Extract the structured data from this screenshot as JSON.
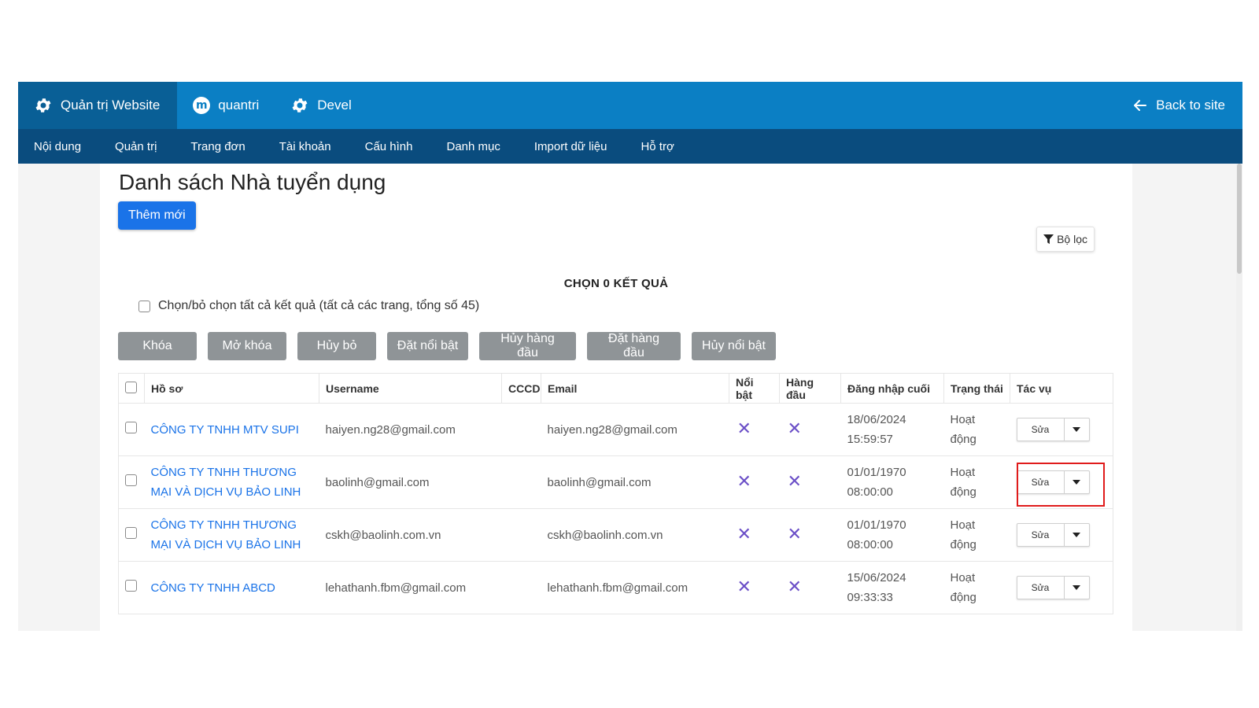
{
  "topbar": {
    "site_admin": "Quản trị Website",
    "user": "quantri",
    "devel": "Devel",
    "back": "Back to site"
  },
  "subnav": {
    "items": [
      "Nội dung",
      "Quản trị",
      "Trang đơn",
      "Tài khoản",
      "Cấu hình",
      "Danh mục",
      "Import dữ liệu",
      "Hỗ trợ"
    ]
  },
  "page": {
    "title": "Danh sách Nhà tuyển dụng",
    "add_button": "Thêm mới",
    "filter_button": "Bộ lọc",
    "chosen_results": "CHỌN 0 KẾT QUẢ",
    "select_all_label": "Chọn/bỏ chọn tất cả kết quả (tất cả các trang, tổng số 45)"
  },
  "actions": [
    "Khóa",
    "Mở khóa",
    "Hủy bỏ",
    "Đặt nổi bật",
    "Hủy hàng đầu",
    "Đặt hàng đầu",
    "Hủy nổi bật"
  ],
  "table": {
    "headers": {
      "profile": "Hồ sơ",
      "username": "Username",
      "cccd": "CCCD",
      "email": "Email",
      "featured": "Nổi bật",
      "top": "Hàng đầu",
      "last_login": "Đăng nhập cuối",
      "status": "Trạng thái",
      "actions": "Tác vụ"
    },
    "rows": [
      {
        "company": "CÔNG TY TNHH MTV SUPI",
        "username": "haiyen.ng28@gmail.com",
        "cccd": "",
        "email": "haiyen.ng28@gmail.com",
        "featured": "✕",
        "top": "✕",
        "last_login_date": "18/06/2024",
        "last_login_time": "15:59:57",
        "status": "Hoạt động",
        "edit": "Sửa"
      },
      {
        "company": "CÔNG TY TNHH THƯƠNG MẠI VÀ DỊCH VỤ BẢO LINH",
        "username": "baolinh@gmail.com",
        "cccd": "",
        "email": "baolinh@gmail.com",
        "featured": "✕",
        "top": "✕",
        "last_login_date": "01/01/1970",
        "last_login_time": "08:00:00",
        "status": "Hoạt động",
        "edit": "Sửa"
      },
      {
        "company": "CÔNG TY TNHH THƯƠNG MẠI VÀ DỊCH VỤ BẢO LINH",
        "username": "cskh@baolinh.com.vn",
        "cccd": "",
        "email": "cskh@baolinh.com.vn",
        "featured": "✕",
        "top": "✕",
        "last_login_date": "01/01/1970",
        "last_login_time": "08:00:00",
        "status": "Hoạt động",
        "edit": "Sửa"
      },
      {
        "company": "CÔNG TY TNHH ABCD",
        "username": "lehathanh.fbm@gmail.com",
        "cccd": "",
        "email": "lehathanh.fbm@gmail.com",
        "featured": "✕",
        "top": "✕",
        "last_login_date": "15/06/2024",
        "last_login_time": "09:33:33",
        "status": "Hoạt động",
        "edit": "Sửa"
      }
    ]
  },
  "colors": {
    "topbar": "#0b7fc4",
    "topbar_active": "#095f96",
    "subnav": "#0a4c7e",
    "primary": "#1a73e8",
    "action_button": "#8f9497",
    "x_mark": "#6b4fc7",
    "highlight": "#e01b1b"
  }
}
